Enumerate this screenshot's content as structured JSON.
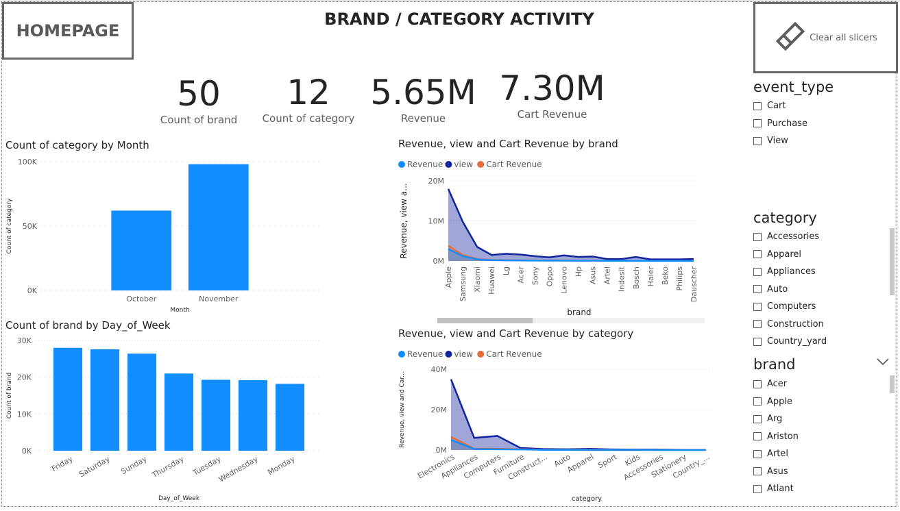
{
  "home_button": {
    "label": "HOMEPAGE"
  },
  "page_title": "BRAND / CATEGORY ACTIVITY",
  "clear_button": {
    "label": "Clear all slicers"
  },
  "kpis": [
    {
      "value": "50",
      "label": "Count of brand"
    },
    {
      "value": "12",
      "label": "Count of category"
    },
    {
      "value": "5.65M",
      "label": "Revenue"
    },
    {
      "value": "7.30M",
      "label": "Cart Revenue"
    }
  ],
  "chart_data": [
    {
      "type": "bar",
      "title": "Count of category by Month",
      "xlabel": "Month",
      "ylabel": "Count of category",
      "categories": [
        "October",
        "November"
      ],
      "values": [
        62000,
        98000
      ],
      "ylim": [
        0,
        100000
      ],
      "yticks": [
        "0K",
        "50K",
        "100K"
      ],
      "color": "#118DFF"
    },
    {
      "type": "bar",
      "title": "Count of brand by Day_of_Week",
      "xlabel": "Day_of_Week",
      "ylabel": "Count of brand",
      "categories": [
        "Friday",
        "Saturday",
        "Sunday",
        "Thursday",
        "Tuesday",
        "Wednesday",
        "Monday"
      ],
      "values": [
        28000,
        27600,
        26400,
        21000,
        19300,
        19200,
        18200
      ],
      "ylim": [
        0,
        30000
      ],
      "yticks": [
        "0K",
        "10K",
        "20K",
        "30K"
      ],
      "color": "#118DFF"
    },
    {
      "type": "area",
      "title": "Revenue, view and Cart Revenue by brand",
      "xlabel": "brand",
      "ylabel": "Revenue, view a...",
      "categories": [
        "Apple",
        "Samsung",
        "Xiaomi",
        "Huawei",
        "Lg",
        "Acer",
        "Sony",
        "Oppo",
        "Lenovo",
        "Hp",
        "Asus",
        "Artel",
        "Indesit",
        "Bosch",
        "Haier",
        "Beko",
        "Philips",
        "Dauscher"
      ],
      "ylim": [
        0,
        20000000
      ],
      "yticks": [
        "0M",
        "10M",
        "20M"
      ],
      "legend": [
        "Revenue",
        "view",
        "Cart Revenue"
      ],
      "series": [
        {
          "name": "Revenue",
          "color": "#118DFF",
          "values": [
            3000000,
            1200000,
            400000,
            200000,
            150000,
            120000,
            100000,
            90000,
            80000,
            70000,
            60000,
            50000,
            40000,
            40000,
            30000,
            30000,
            30000,
            20000
          ]
        },
        {
          "name": "view",
          "color": "#12239E",
          "values": [
            18000000,
            9800000,
            3500000,
            1500000,
            1800000,
            1600000,
            1200000,
            900000,
            1400000,
            1000000,
            1100000,
            500000,
            500000,
            1000000,
            400000,
            400000,
            400000,
            500000
          ]
        },
        {
          "name": "Cart Revenue",
          "color": "#E66C37",
          "values": [
            3800000,
            1500000,
            500000,
            250000,
            200000,
            150000,
            130000,
            110000,
            100000,
            90000,
            80000,
            60000,
            50000,
            50000,
            40000,
            40000,
            40000,
            30000
          ]
        }
      ]
    },
    {
      "type": "area",
      "title": "Revenue, view and Cart Revenue by category",
      "xlabel": "category",
      "ylabel": "Revenue, view and Car...",
      "categories": [
        "Electronics",
        "Appliances",
        "Computers",
        "Furniture",
        "Construct...",
        "Auto",
        "Apparel",
        "Sport",
        "Kids",
        "Accessories",
        "Stationery",
        "Country_..."
      ],
      "ylim": [
        0,
        40000000
      ],
      "yticks": [
        "0M",
        "20M",
        "40M"
      ],
      "legend": [
        "Revenue",
        "view",
        "Cart Revenue"
      ],
      "series": [
        {
          "name": "Revenue",
          "color": "#118DFF",
          "values": [
            5000000,
            500000,
            400000,
            300000,
            100000,
            80000,
            60000,
            40000,
            30000,
            20000,
            10000,
            10000
          ]
        },
        {
          "name": "view",
          "color": "#12239E",
          "values": [
            35000000,
            6000000,
            7000000,
            1000000,
            500000,
            400000,
            600000,
            300000,
            200000,
            200000,
            100000,
            100000
          ]
        },
        {
          "name": "Cart Revenue",
          "color": "#E66C37",
          "values": [
            6500000,
            700000,
            600000,
            400000,
            200000,
            150000,
            200000,
            100000,
            80000,
            60000,
            30000,
            30000
          ]
        }
      ]
    }
  ],
  "slicers": {
    "event_type": {
      "title": "event_type",
      "items": [
        "Cart",
        "Purchase",
        "View"
      ]
    },
    "category": {
      "title": "category",
      "items": [
        "Accessories",
        "Apparel",
        "Appliances",
        "Auto",
        "Computers",
        "Construction",
        "Country_yard"
      ]
    },
    "brand": {
      "title": "brand",
      "items": [
        "Acer",
        "Apple",
        "Arg",
        "Ariston",
        "Artel",
        "Asus",
        "Atlant"
      ]
    }
  },
  "icons": {
    "clear": "eraser-icon",
    "expand": "chevron-down-icon"
  }
}
